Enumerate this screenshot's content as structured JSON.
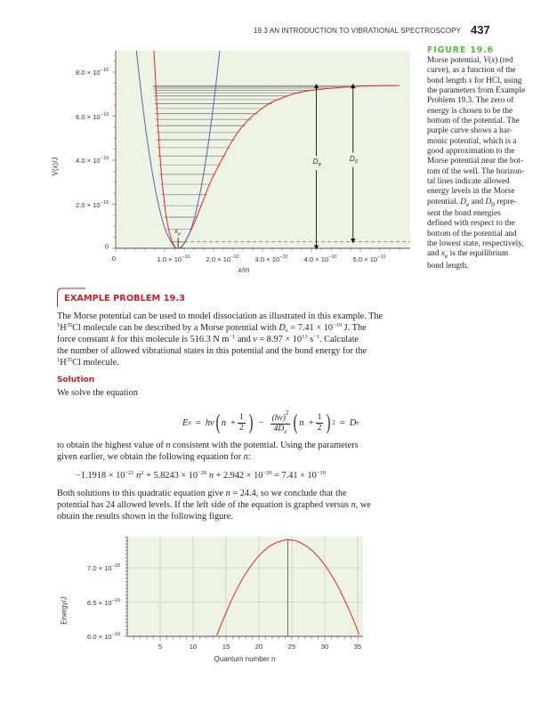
{
  "header": {
    "section_title": "19.3 AN INTRODUCTION TO VIBRATIONAL SPECTROSCOPY",
    "page_number": "437"
  },
  "figure": {
    "label": "FIGURE 19.6",
    "caption_lines": [
      [
        "Morse potential, ",
        [
          "i",
          "V"
        ],
        "(",
        [
          "i",
          "x"
        ],
        ") (red"
      ],
      [
        "curve), as a function of the"
      ],
      [
        "bond length ",
        [
          "i",
          "x"
        ],
        " for HCl, using"
      ],
      [
        "the parameters from Example"
      ],
      [
        "Problem 19.3. The zero of"
      ],
      [
        "energy is chosen to be the"
      ],
      [
        "bottom of the potential. The"
      ],
      [
        "purple curve shows a har-"
      ],
      [
        "monic potential, which is a"
      ],
      [
        "good approximation to the"
      ],
      [
        "Morse potential near the bot-"
      ],
      [
        "tom of the well. The horizon-"
      ],
      [
        "tal lines indicate allowed"
      ],
      [
        "energy levels in the Morse"
      ],
      [
        "potential. ",
        [
          "i",
          "D"
        ],
        [
          "sub",
          "e"
        ],
        " and ",
        [
          "i",
          "D"
        ],
        [
          "sub",
          "0"
        ],
        " repre-"
      ],
      [
        "sent the bond energies"
      ],
      [
        "defined with respect to the"
      ],
      [
        "bottom of the potential and"
      ],
      [
        "the lowest state, respectively,"
      ],
      [
        "and ",
        [
          "i",
          "x"
        ],
        [
          "sub",
          "e"
        ],
        " is the equilibrium"
      ],
      [
        "bond length."
      ]
    ]
  },
  "chart_data": [
    {
      "type": "line",
      "xlabel": "x/m",
      "ylabel": "V(x)/J",
      "xlim": [
        0,
        6e-10
      ],
      "ylim": [
        0,
        9e-19
      ],
      "grid": false,
      "background": "#eef4e4",
      "xticks": [
        {
          "value": 0,
          "label": [
            "0"
          ]
        },
        {
          "value": 1e-10,
          "label": [
            "1.0 × 10",
            [
              "sup",
              "−10"
            ]
          ]
        },
        {
          "value": 2e-10,
          "label": [
            "2.0 × 10",
            [
              "sup",
              "−10"
            ]
          ]
        },
        {
          "value": 3e-10,
          "label": [
            "3.0 × 10",
            [
              "sup",
              "−10"
            ]
          ]
        },
        {
          "value": 4e-10,
          "label": [
            "4.0 × 10",
            [
              "sup",
              "−10"
            ]
          ]
        },
        {
          "value": 5e-10,
          "label": [
            "5.0 × 10",
            [
              "sup",
              "−10"
            ]
          ]
        }
      ],
      "yticks": [
        {
          "value": 0,
          "label": [
            "0"
          ]
        },
        {
          "value": 2e-19,
          "label": [
            "2.0 × 10",
            [
              "sup",
              "−19"
            ]
          ]
        },
        {
          "value": 4e-19,
          "label": [
            "4.0 × 10",
            [
              "sup",
              "−19"
            ]
          ]
        },
        {
          "value": 6e-19,
          "label": [
            "6.0 × 10",
            [
              "sup",
              "−19"
            ]
          ]
        },
        {
          "value": 8e-19,
          "label": [
            "8.0 × 10",
            [
              "sup",
              "−19"
            ]
          ]
        }
      ],
      "series": [
        {
          "color": "#e8242b",
          "x": [
            8e-11,
            9e-11,
            1e-10,
            1.1e-10,
            1.2e-10,
            1.275e-10,
            1.4e-10,
            1.6e-10,
            1.8e-10,
            2e-10,
            2.5e-10,
            3e-10,
            3.5e-10,
            4e-10,
            5e-10,
            5.8e-10
          ],
          "y": [
            8.23e-19,
            4.35e-19,
            1.98e-19,
            6.8e-20,
            1.07e-20,
            0,
            2.2e-20,
            1.12e-19,
            2.23e-19,
            3.3e-19,
            5.28e-19,
            6.37e-19,
            6.91e-19,
            7.17e-19,
            7.36e-19,
            7.39e-19
          ]
        },
        {
          "color": "#5b5fb0",
          "x": [
            4.3e-11,
            6e-11,
            8e-11,
            1e-10,
            1.2e-10,
            1.275e-10,
            1.35e-10,
            1.55e-10,
            1.75e-10,
            1.95e-10,
            2.12e-10
          ],
          "y": [
            8.85e-19,
            5.65e-19,
            2.8e-19,
            9.4e-20,
            7e-21,
            0,
            7e-21,
            9.4e-20,
            2.8e-19,
            5.65e-19,
            8.85e-19
          ]
        }
      ],
      "energy_levels": [
        2.94e-20,
        8.65e-20,
        1.411e-19,
        1.934e-19,
        2.434e-19,
        2.908e-19,
        3.36e-19,
        3.788e-19,
        4.191e-19,
        4.571e-19,
        4.927e-19,
        5.26e-19,
        5.568e-19,
        5.852e-19,
        6.113e-19,
        6.349e-19,
        6.563e-19,
        6.752e-19,
        6.917e-19,
        7.059e-19,
        7.176e-19,
        7.27e-19,
        7.34e-19,
        7.386e-19
      ],
      "annotations": {
        "De": {
          "label": "D",
          "sub": "e",
          "x": 4.1e-10,
          "from": 0,
          "to": 7.41e-19
        },
        "D0": {
          "label": "D",
          "sub": "0",
          "x": 4.85e-10,
          "from": 2.94e-20,
          "to": 7.41e-19
        },
        "xe": {
          "label": "x",
          "sub": "e",
          "x": 1.275e-10
        }
      }
    },
    {
      "type": "line",
      "xlabel": "Quantum number n",
      "ylabel": "Energy/J",
      "xlim": [
        0,
        35.8
      ],
      "ylim": [
        6e-19,
        7.455e-19
      ],
      "grid": true,
      "background": "#eef4e4",
      "xticks": [
        {
          "value": 5,
          "label": [
            "5"
          ]
        },
        {
          "value": 10,
          "label": [
            "10"
          ]
        },
        {
          "value": 15,
          "label": [
            "15"
          ]
        },
        {
          "value": 20,
          "label": [
            "20"
          ]
        },
        {
          "value": 25,
          "label": [
            "25"
          ]
        },
        {
          "value": 30,
          "label": [
            "30"
          ]
        },
        {
          "value": 35,
          "label": [
            "35"
          ]
        }
      ],
      "yticks": [
        {
          "value": 6e-19,
          "label": [
            "6.0 × 10",
            [
              "sup",
              "−19"
            ]
          ]
        },
        {
          "value": 6.5e-19,
          "label": [
            "6.5 × 10",
            [
              "sup",
              "−19"
            ]
          ]
        },
        {
          "value": 7e-19,
          "label": [
            "7.0 × 10",
            [
              "sup",
              "−19"
            ]
          ]
        }
      ],
      "series": [
        {
          "color": "#e8242b",
          "x": [
            13.6,
            14,
            16,
            18,
            20,
            22,
            24,
            24.4,
            26,
            28,
            30,
            32,
            34,
            35.2
          ],
          "y": [
            6.011e-19,
            6.112e-19,
            6.562e-19,
            6.917e-19,
            7.176e-19,
            7.339e-19,
            7.407e-19,
            7.41e-19,
            7.38e-19,
            7.258e-19,
            7.041e-19,
            6.728e-19,
            6.32e-19,
            6.029e-19
          ]
        }
      ],
      "marker_line_x": 24.4
    }
  ],
  "example": {
    "title": "EXAMPLE PROBLEM 19.3",
    "para1": [
      [
        "The Morse potential can be used to model dissociation as illustrated in this example. The"
      ],
      [
        [
          "sup",
          "1"
        ],
        "H",
        [
          "sup",
          "35"
        ],
        "Cl molecule can be described by a Morse potential with ",
        [
          "i",
          "D"
        ],
        [
          "sub",
          "e"
        ],
        " = 7.41 × 10",
        [
          "sup",
          "−19"
        ],
        " J. The"
      ],
      [
        "force constant ",
        [
          "i",
          "k"
        ],
        " for this molecule is 516.3 N m",
        [
          "sup",
          "−1"
        ],
        " and ",
        [
          "i",
          "ν"
        ],
        " = 8.97 × 10",
        [
          "sup",
          "13"
        ],
        " s",
        [
          "sup",
          "−1"
        ],
        ". Calculate"
      ],
      [
        "the number of allowed vibrational states in this potential and the bond energy for the"
      ],
      [
        [
          "sup",
          "1"
        ],
        "H",
        [
          "sup",
          "35"
        ],
        "Cl molecule."
      ]
    ],
    "solution_heading": "Solution",
    "solve_intro": "We solve the equation",
    "eq1": {
      "E": "E",
      "n": "n",
      "eq": "=",
      "hv": "hν",
      "lp": "(",
      "rp": ")",
      "plus": "+",
      "one": "1",
      "two": "2",
      "minus": "−",
      "hv2": "(hν)",
      "sq": "2",
      "four": "4D",
      "e": "e",
      "De": "D"
    },
    "para2": [
      [
        "to obtain the highest value of ",
        [
          "i",
          "n"
        ],
        " consistent with the potential. Using the parameters"
      ],
      [
        "given earlier, we obtain the following equation for ",
        [
          "i",
          "n"
        ],
        ":"
      ]
    ],
    "eq2": [
      "−1.1918 × 10",
      [
        "sup",
        "−21"
      ],
      " ",
      [
        "i",
        "n"
      ],
      [
        "sup",
        "2"
      ],
      " + 5.8243 × 10",
      [
        "sup",
        "−20"
      ],
      " ",
      [
        "i",
        "n"
      ],
      " + 2.942 × 10",
      [
        "sup",
        "−20"
      ],
      " = 7.41 × 10",
      [
        "sup",
        "−19"
      ]
    ],
    "para3": [
      [
        "Both solutions to this quadratic equation give ",
        [
          "i",
          "n"
        ],
        " = 24.4, so we conclude that the"
      ],
      [
        "potential has 24 allowed levels. If the left side of the equation is graphed versus ",
        [
          "i",
          "n"
        ],
        ", we"
      ],
      [
        "obtain the results shown in the following figure."
      ]
    ]
  }
}
